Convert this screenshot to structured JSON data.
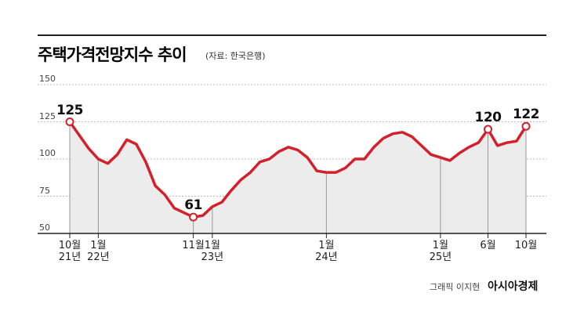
{
  "chart_data": {
    "type": "line",
    "title": "주택가격전망지수 추이",
    "subtitle": "(자료: 한국은행)",
    "credit": "그래픽 이지현",
    "brand": "아시아경제",
    "categories": [
      "10월\n21년",
      null,
      null,
      "1월\n22년",
      null,
      null,
      null,
      null,
      null,
      null,
      null,
      null,
      null,
      "11월",
      null,
      "1월\n23년",
      null,
      null,
      null,
      null,
      null,
      null,
      null,
      null,
      null,
      null,
      null,
      "1월\n24년",
      null,
      null,
      null,
      null,
      null,
      null,
      null,
      null,
      null,
      null,
      null,
      "1월\n25년",
      null,
      null,
      null,
      null,
      "6월",
      null,
      null,
      null,
      "10월"
    ],
    "series": [
      {
        "name": "주택가격전망지수",
        "color": "#d3202a",
        "values": [
          125,
          116,
          107,
          100,
          97,
          103,
          113,
          110,
          98,
          82,
          76,
          67,
          64,
          61,
          62,
          68,
          71,
          79,
          86,
          91,
          98,
          100,
          105,
          108,
          106,
          101,
          92,
          91,
          91,
          94,
          100,
          100,
          108,
          114,
          117,
          118,
          115,
          109,
          103,
          101,
          99,
          104,
          108,
          111,
          120,
          109,
          111,
          112,
          122
        ]
      }
    ],
    "labeled_points": [
      0,
      13,
      44,
      48
    ],
    "area_color": "#ececec",
    "ylim": [
      50,
      150
    ],
    "yticks": [
      50,
      75,
      100,
      125,
      150
    ],
    "grid": true
  }
}
